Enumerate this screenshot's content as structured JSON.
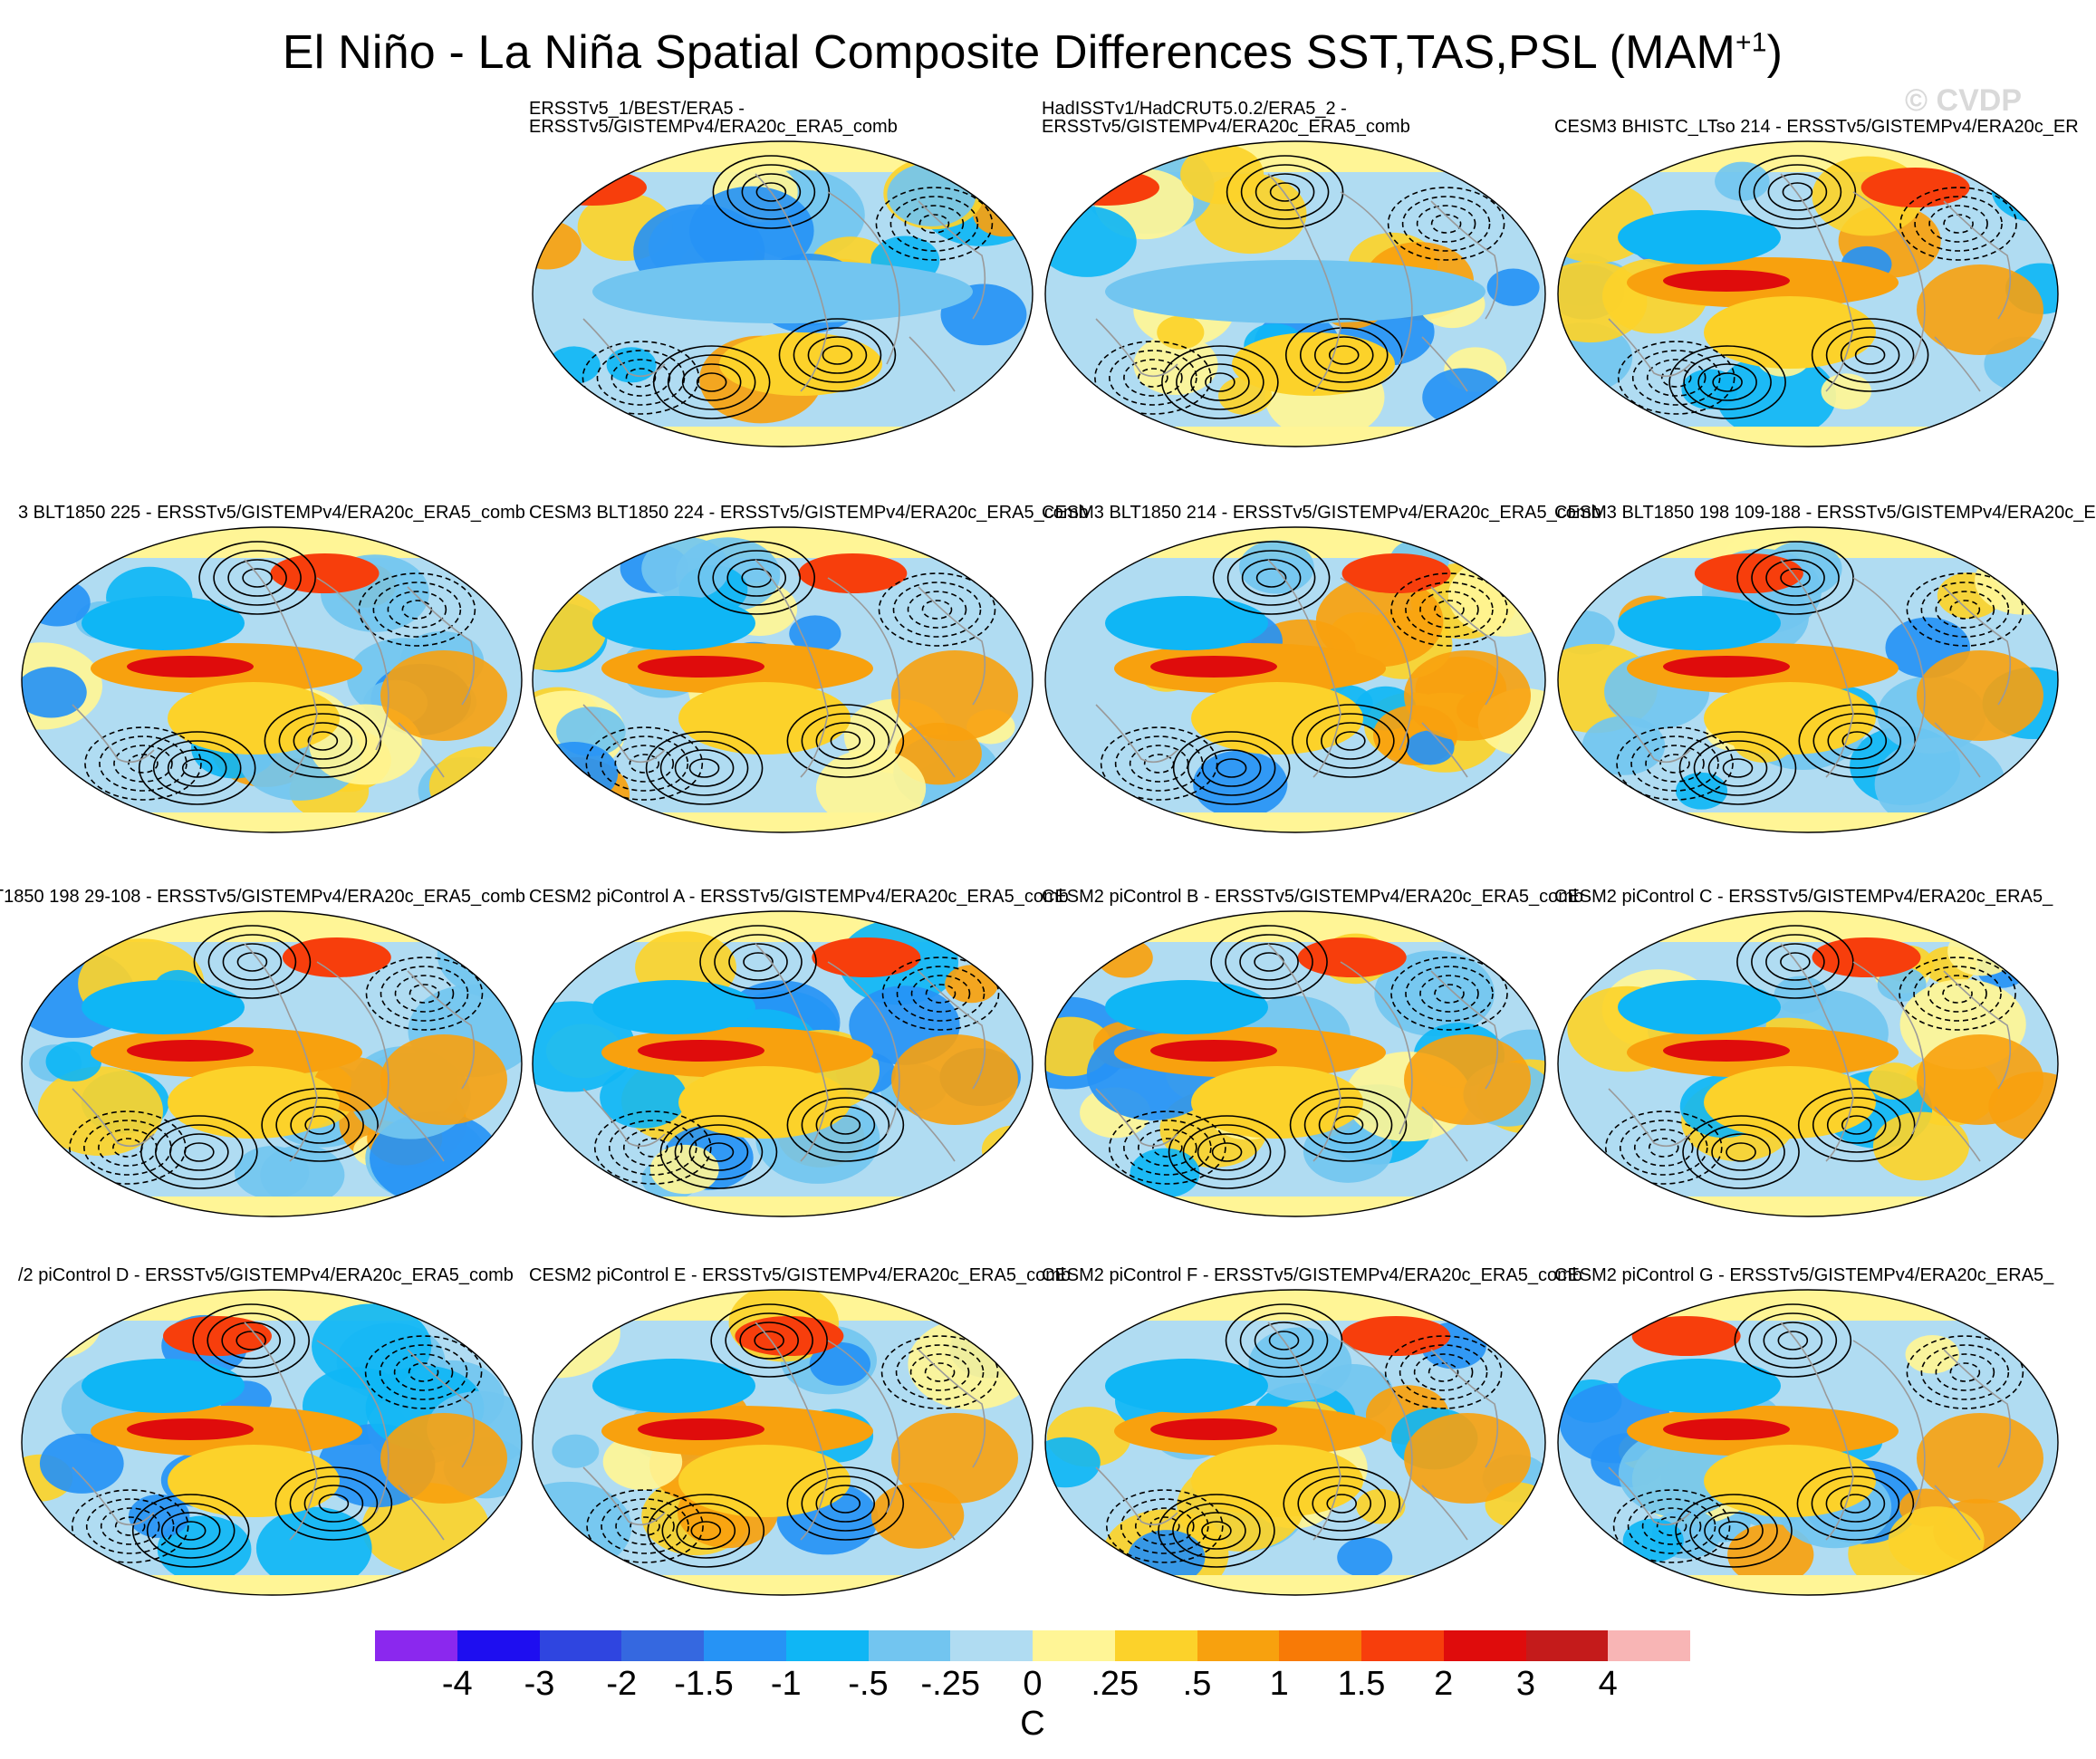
{
  "figure": {
    "title_main": "El Niño - La Niña Spatial Composite Differences SST,TAS,PSL (MAM",
    "title_sup": "+1",
    "title_close": ")",
    "watermark": "© CVDP"
  },
  "panels": [
    {
      "row": 0,
      "col": 1,
      "label_line1": "ERSSTv5_1/BEST/ERA5 -",
      "label_line2": "ERSSTv5/GISTEMPv4/ERA20c_ERA5_comb",
      "pattern": "obs1"
    },
    {
      "row": 0,
      "col": 2,
      "label_line1": "HadISSTv1/HadCRUT5.0.2/ERA5_2 -",
      "label_line2": "ERSSTv5/GISTEMPv4/ERA20c_ERA5_comb",
      "pattern": "obs2"
    },
    {
      "row": 0,
      "col": 3,
      "label_line1": "CESM3 BHISTC_LTso 214 - ERSSTv5/GISTEMPv4/ERA20c_ER",
      "label_line2": "",
      "pattern": "model"
    },
    {
      "row": 1,
      "col": 0,
      "label_line1": "3 BLT1850 225 - ERSSTv5/GISTEMPv4/ERA20c_ERA5_comb",
      "label_line2": "",
      "pattern": "model"
    },
    {
      "row": 1,
      "col": 1,
      "label_line1": "CESM3 BLT1850 224 - ERSSTv5/GISTEMPv4/ERA20c_ERA5_comb",
      "label_line2": "",
      "pattern": "model"
    },
    {
      "row": 1,
      "col": 2,
      "label_line1": "CESM3 BLT1850 214 - ERSSTv5/GISTEMPv4/ERA20c_ERA5_comb",
      "label_line2": "",
      "pattern": "model"
    },
    {
      "row": 1,
      "col": 3,
      "label_line1": "CESM3 BLT1850 198 109-188 - ERSSTv5/GISTEMPv4/ERA20c_E",
      "label_line2": "",
      "pattern": "model"
    },
    {
      "row": 2,
      "col": 0,
      "label_line1": ".T1850 198 29-108 - ERSSTv5/GISTEMPv4/ERA20c_ERA5_comb",
      "label_line2": "",
      "pattern": "model"
    },
    {
      "row": 2,
      "col": 1,
      "label_line1": "CESM2 piControl A - ERSSTv5/GISTEMPv4/ERA20c_ERA5_comb",
      "label_line2": "",
      "pattern": "model"
    },
    {
      "row": 2,
      "col": 2,
      "label_line1": "CESM2 piControl B - ERSSTv5/GISTEMPv4/ERA20c_ERA5_comb",
      "label_line2": "",
      "pattern": "model"
    },
    {
      "row": 2,
      "col": 3,
      "label_line1": "CESM2 piControl C - ERSSTv5/GISTEMPv4/ERA20c_ERA5_",
      "label_line2": "",
      "pattern": "model"
    },
    {
      "row": 3,
      "col": 0,
      "label_line1": "/2 piControl D - ERSSTv5/GISTEMPv4/ERA20c_ERA5_comb",
      "label_line2": "",
      "pattern": "model"
    },
    {
      "row": 3,
      "col": 1,
      "label_line1": "CESM2 piControl E - ERSSTv5/GISTEMPv4/ERA20c_ERA5_comb",
      "label_line2": "",
      "pattern": "model"
    },
    {
      "row": 3,
      "col": 2,
      "label_line1": "CESM2 piControl F - ERSSTv5/GISTEMPv4/ERA20c_ERA5_comb",
      "label_line2": "",
      "pattern": "model"
    },
    {
      "row": 3,
      "col": 3,
      "label_line1": "CESM2 piControl G - ERSSTv5/GISTEMPv4/ERA20c_ERA5_",
      "label_line2": "",
      "pattern": "model"
    }
  ],
  "colorbar": {
    "colors": [
      "#8b28ee",
      "#1e0ef0",
      "#2f45e0",
      "#3568e0",
      "#2693f5",
      "#0fb6f5",
      "#72c5f0",
      "#b0dcf2",
      "#fff596",
      "#fcd22a",
      "#f8a10e",
      "#f87a06",
      "#f73e0c",
      "#df0c0c",
      "#c41b1b",
      "#f8b5b5"
    ],
    "labels": [
      "-4",
      "-3",
      "-2",
      "-1.5",
      "-1",
      "-.5",
      "-.25",
      "0",
      ".25",
      ".5",
      "1",
      "1.5",
      "2",
      "3",
      "4"
    ],
    "units": "C"
  }
}
